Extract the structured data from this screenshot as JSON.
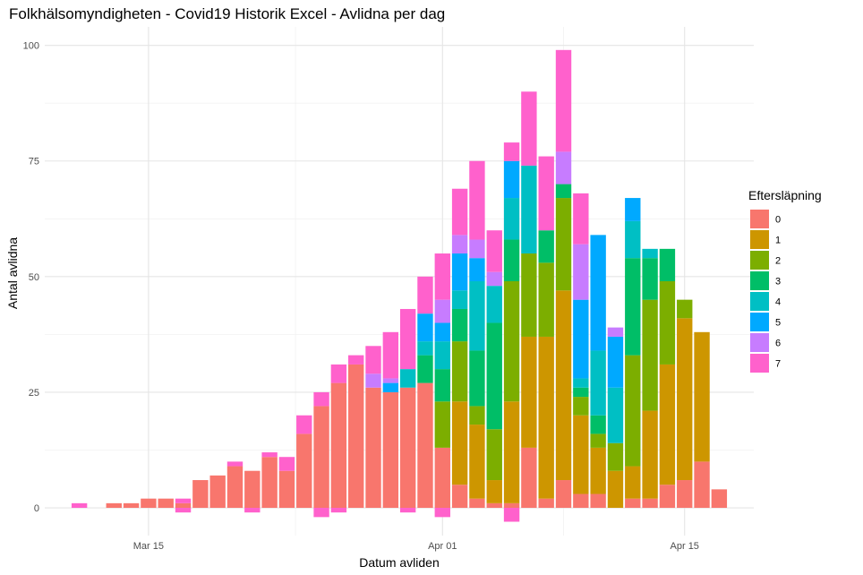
{
  "chart_data": {
    "type": "bar",
    "stacked": true,
    "title": "Folkhälsomyndigheten - Covid19 Historik Excel - Avlidna per dag",
    "xlabel": "Datum avliden",
    "ylabel": "Antal avlidna",
    "x_ticks": [
      "Mar 15",
      "Apr 01",
      "Apr 15"
    ],
    "x_tick_dates": [
      "2020-03-15",
      "2020-04-01",
      "2020-04-15"
    ],
    "y_ticks": [
      "0",
      "25",
      "50",
      "75",
      "100"
    ],
    "ylim": [
      -6,
      104
    ],
    "xlim": [
      "2020-03-09",
      "2020-04-19"
    ],
    "grid": true,
    "legend_position": "right",
    "legend": {
      "title": "Eftersläpning",
      "entries": [
        "0",
        "1",
        "2",
        "3",
        "4",
        "5",
        "6",
        "7"
      ],
      "colors": [
        "#F8766D",
        "#CD9600",
        "#7CAE00",
        "#00BE67",
        "#00BFC4",
        "#00A9FF",
        "#C77CFF",
        "#FF61CC"
      ]
    },
    "categories": [
      "2020-03-11",
      "2020-03-12",
      "2020-03-13",
      "2020-03-14",
      "2020-03-15",
      "2020-03-16",
      "2020-03-17",
      "2020-03-18",
      "2020-03-19",
      "2020-03-20",
      "2020-03-21",
      "2020-03-22",
      "2020-03-23",
      "2020-03-24",
      "2020-03-25",
      "2020-03-26",
      "2020-03-27",
      "2020-03-28",
      "2020-03-29",
      "2020-03-30",
      "2020-03-31",
      "2020-04-01",
      "2020-04-02",
      "2020-04-03",
      "2020-04-04",
      "2020-04-05",
      "2020-04-06",
      "2020-04-07",
      "2020-04-08",
      "2020-04-09",
      "2020-04-10",
      "2020-04-11",
      "2020-04-12",
      "2020-04-13",
      "2020-04-14",
      "2020-04-15",
      "2020-04-16",
      "2020-04-17"
    ],
    "series": [
      {
        "name": "0",
        "values": [
          0,
          0,
          1,
          1,
          2,
          2,
          1,
          6,
          7,
          9,
          8,
          11,
          8,
          16,
          22,
          27,
          31,
          26,
          25,
          26,
          27,
          13,
          5,
          2,
          1,
          1,
          13,
          2,
          6,
          3,
          3,
          0,
          2,
          2,
          5,
          6,
          10,
          4
        ]
      },
      {
        "name": "1",
        "values": [
          0,
          0,
          0,
          0,
          0,
          0,
          0,
          0,
          0,
          0,
          0,
          0,
          0,
          0,
          0,
          0,
          0,
          0,
          0,
          0,
          0,
          0,
          18,
          16,
          5,
          22,
          24,
          35,
          41,
          17,
          10,
          8,
          7,
          19,
          26,
          35,
          28,
          0
        ]
      },
      {
        "name": "2",
        "values": [
          0,
          0,
          0,
          0,
          0,
          0,
          0,
          0,
          0,
          0,
          0,
          0,
          0,
          0,
          0,
          0,
          0,
          0,
          0,
          0,
          0,
          10,
          13,
          4,
          11,
          26,
          18,
          16,
          20,
          4,
          3,
          6,
          24,
          24,
          18,
          4,
          0,
          0
        ]
      },
      {
        "name": "3",
        "values": [
          0,
          0,
          0,
          0,
          0,
          0,
          0,
          0,
          0,
          0,
          0,
          0,
          0,
          0,
          0,
          0,
          0,
          0,
          0,
          0,
          6,
          7,
          7,
          12,
          23,
          9,
          0,
          7,
          3,
          2,
          4,
          0,
          21,
          9,
          7,
          0,
          0,
          0
        ]
      },
      {
        "name": "4",
        "values": [
          0,
          0,
          0,
          0,
          0,
          0,
          0,
          0,
          0,
          0,
          0,
          0,
          0,
          0,
          0,
          0,
          0,
          0,
          0,
          4,
          3,
          6,
          4,
          15,
          8,
          9,
          19,
          0,
          0,
          2,
          14,
          12,
          8,
          2,
          0,
          0,
          0,
          0
        ]
      },
      {
        "name": "5",
        "values": [
          0,
          0,
          0,
          0,
          0,
          0,
          0,
          0,
          0,
          0,
          0,
          0,
          0,
          0,
          0,
          0,
          0,
          0,
          2,
          0,
          6,
          4,
          8,
          5,
          0,
          8,
          0,
          0,
          0,
          17,
          25,
          11,
          5,
          0,
          0,
          0,
          0,
          0
        ]
      },
      {
        "name": "6",
        "values": [
          0,
          0,
          0,
          0,
          0,
          0,
          0,
          0,
          0,
          0,
          0,
          0,
          0,
          0,
          0,
          0,
          0,
          3,
          1,
          0,
          0,
          5,
          4,
          4,
          3,
          0,
          0,
          0,
          7,
          12,
          0,
          2,
          0,
          0,
          0,
          0,
          0,
          0
        ]
      },
      {
        "name": "7",
        "values": [
          1,
          0,
          0,
          0,
          0,
          0,
          1,
          0,
          0,
          1,
          0,
          1,
          3,
          4,
          3,
          4,
          2,
          6,
          10,
          13,
          8,
          10,
          10,
          17,
          9,
          4,
          16,
          16,
          22,
          11,
          0,
          0,
          0,
          0,
          0,
          0,
          0,
          0
        ]
      },
      {
        "name": "0-neg",
        "values": [
          0,
          0,
          0,
          0,
          0,
          0,
          -1,
          0,
          0,
          0,
          -1,
          0,
          0,
          0,
          -2,
          -1,
          0,
          0,
          0,
          -1,
          0,
          -2,
          0,
          0,
          0,
          -3,
          0,
          0,
          0,
          0,
          0,
          0,
          0,
          0,
          0,
          0,
          0,
          0
        ]
      }
    ]
  }
}
